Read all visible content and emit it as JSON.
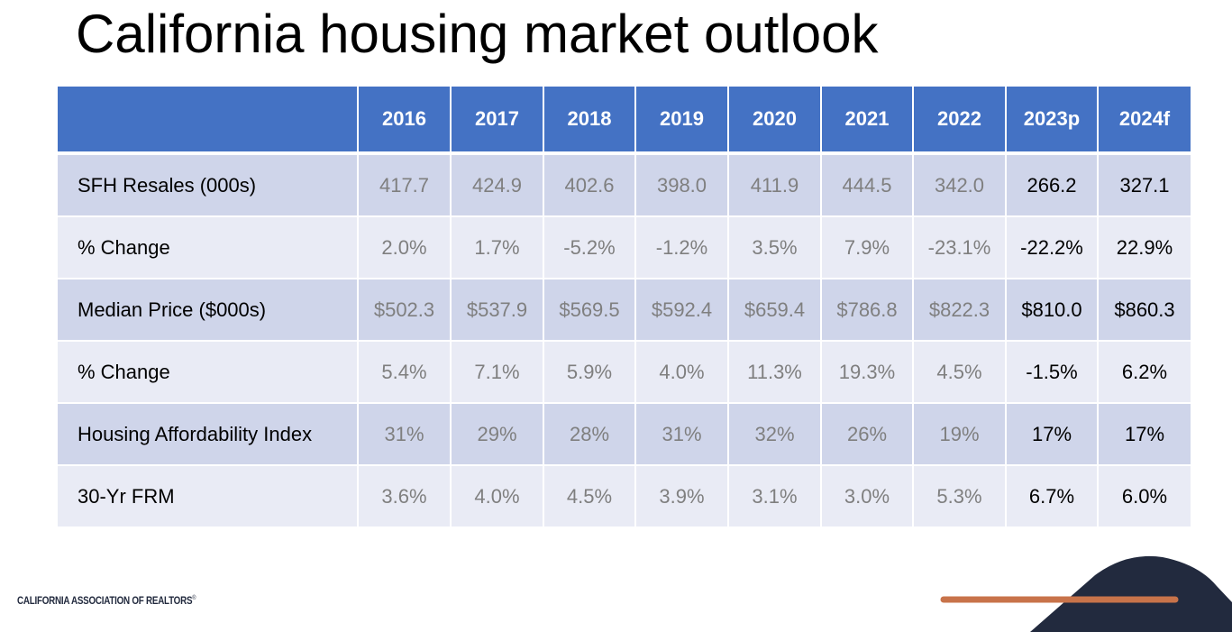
{
  "slide": {
    "title": "California housing market outlook",
    "footer": {
      "logo_text": "CALIFORNIA ASSOCIATION OF REALTORS",
      "logo_mark": "®"
    }
  },
  "table": {
    "columns": [
      "",
      "2016",
      "2017",
      "2018",
      "2019",
      "2020",
      "2021",
      "2022",
      "2023p",
      "2024f"
    ],
    "rows": [
      {
        "label": "SFH Resales (000s)",
        "values": [
          "417.7",
          "424.9",
          "402.6",
          "398.0",
          "411.9",
          "444.5",
          "342.0",
          "266.2",
          "327.1"
        ]
      },
      {
        "label": "% Change",
        "values": [
          "2.0%",
          "1.7%",
          "-5.2%",
          "-1.2%",
          "3.5%",
          "7.9%",
          "-23.1%",
          "-22.2%",
          "22.9%"
        ]
      },
      {
        "label": "Median Price ($000s)",
        "values": [
          "$502.3",
          "$537.9",
          "$569.5",
          "$592.4",
          "$659.4",
          "$786.8",
          "$822.3",
          "$810.0",
          "$860.3"
        ]
      },
      {
        "label": "% Change",
        "values": [
          "5.4%",
          "7.1%",
          "5.9%",
          "4.0%",
          "11.3%",
          "19.3%",
          "4.5%",
          "-1.5%",
          "6.2%"
        ]
      },
      {
        "label": "Housing Affordability Index",
        "values": [
          "31%",
          "29%",
          "28%",
          "31%",
          "32%",
          "26%",
          "19%",
          "17%",
          "17%"
        ]
      },
      {
        "label": "30-Yr FRM",
        "values": [
          "3.6%",
          "4.0%",
          "4.5%",
          "3.9%",
          "3.1%",
          "3.0%",
          "5.3%",
          "6.7%",
          "6.0%"
        ]
      }
    ]
  },
  "colors": {
    "header_bg": "#4472c4",
    "row_dark": "#cfd5ea",
    "row_light": "#e9ebf5",
    "historical_text": "#7f7f7f",
    "forecast_text": "#000000",
    "decor_navy": "#222a3e",
    "decor_orange": "#c8734a"
  }
}
